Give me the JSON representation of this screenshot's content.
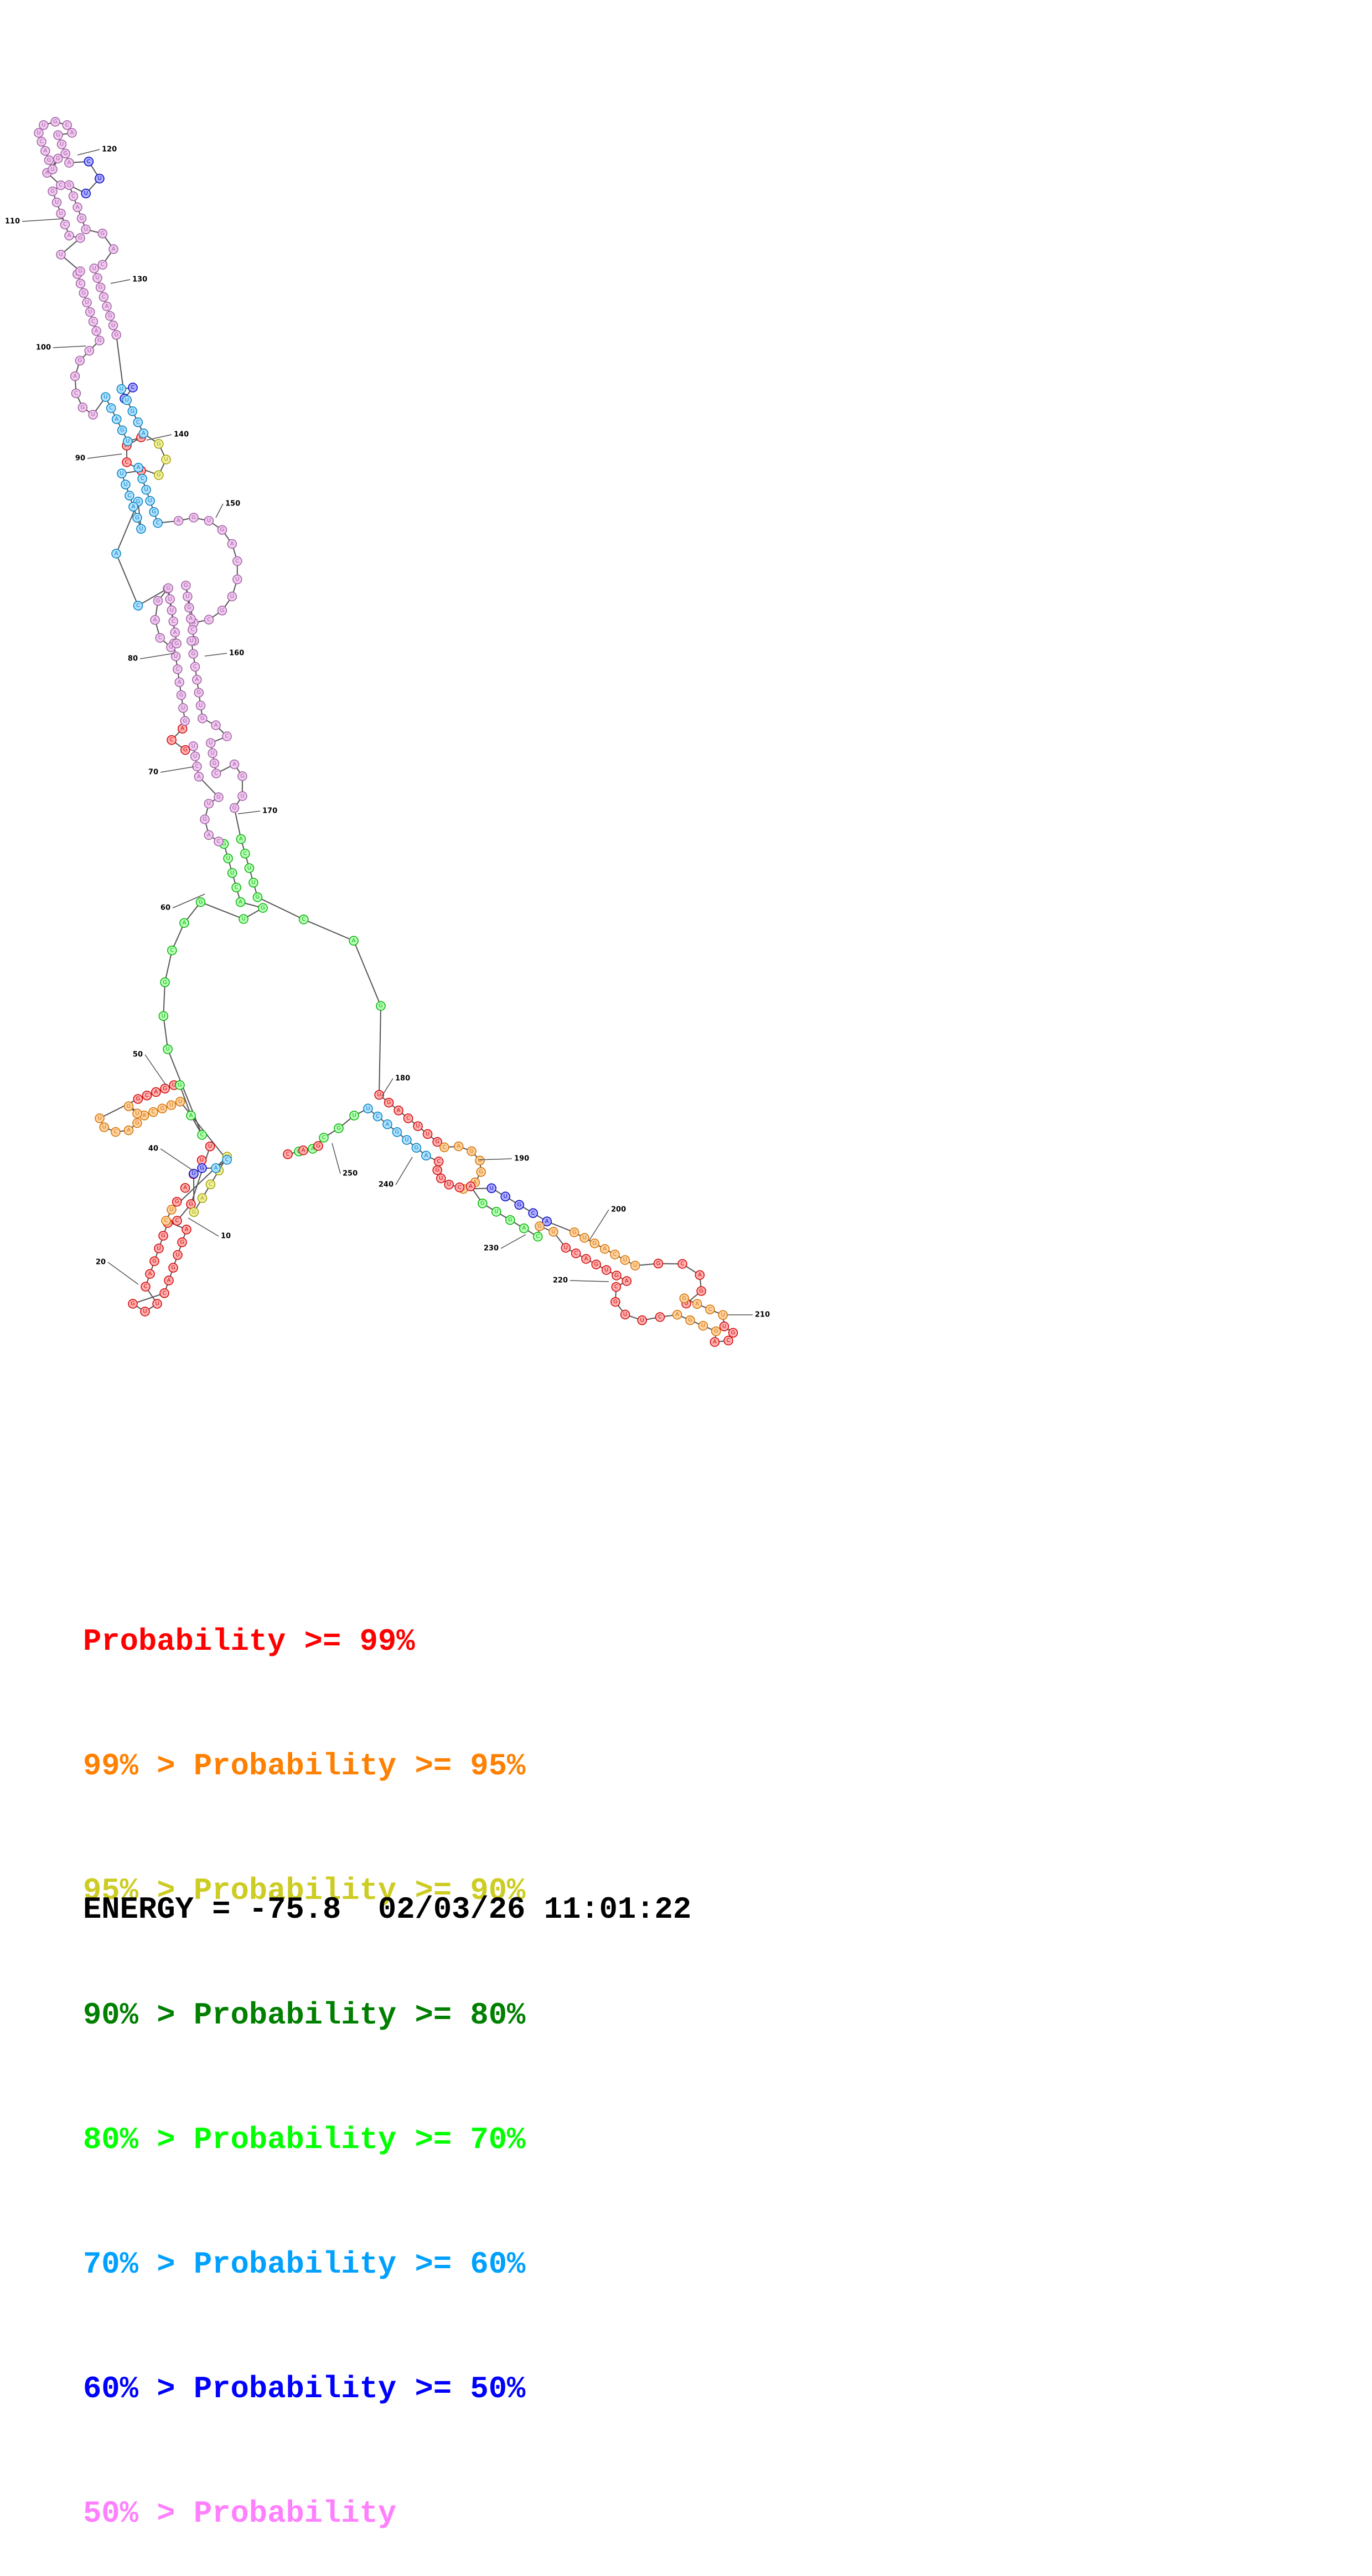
{
  "legend": [
    {
      "prefix": "",
      "text": "Probability >= 99%",
      "color": "#ff0000"
    },
    {
      "prefix": "99% > ",
      "text": "Probability >= 95%",
      "color": "#ff8000"
    },
    {
      "prefix": "95% > ",
      "text": "Probability >= 90%",
      "color": "#cccc22"
    },
    {
      "prefix": "90% > ",
      "text": "Probability >= 80%",
      "color": "#007f00"
    },
    {
      "prefix": "80% > ",
      "text": "Probability >= 70%",
      "color": "#00ff00"
    },
    {
      "prefix": "70% > ",
      "text": "Probability >= 60%",
      "color": "#00a0ff"
    },
    {
      "prefix": "60% > ",
      "text": "Probability >= 50%",
      "color": "#0000ff"
    },
    {
      "prefix": "50% > ",
      "text": "Probability",
      "color": "#ff80ff"
    }
  ],
  "footer": {
    "energy_label": "ENERGY =",
    "energy_value": "-75.8",
    "date": "02/03/26",
    "time": "11:01:22"
  },
  "position_labels": [
    "10",
    "20",
    "40",
    "50",
    "60",
    "70",
    "80",
    "90",
    "100",
    "110",
    "120",
    "130",
    "140",
    "150",
    "160",
    "170",
    "180",
    "190",
    "200",
    "210",
    "220",
    "230",
    "240",
    "250"
  ],
  "nucleotide_fill_colors": {
    "red": "#ffb0b0",
    "orange": "#ffd2a0",
    "yellow": "#f0f0a0",
    "dark_green": "#b0e0b0",
    "green": "#b8ffb8",
    "cyan": "#b0e0ff",
    "blue": "#b0b0ff",
    "pink": "#f0c8f0"
  }
}
